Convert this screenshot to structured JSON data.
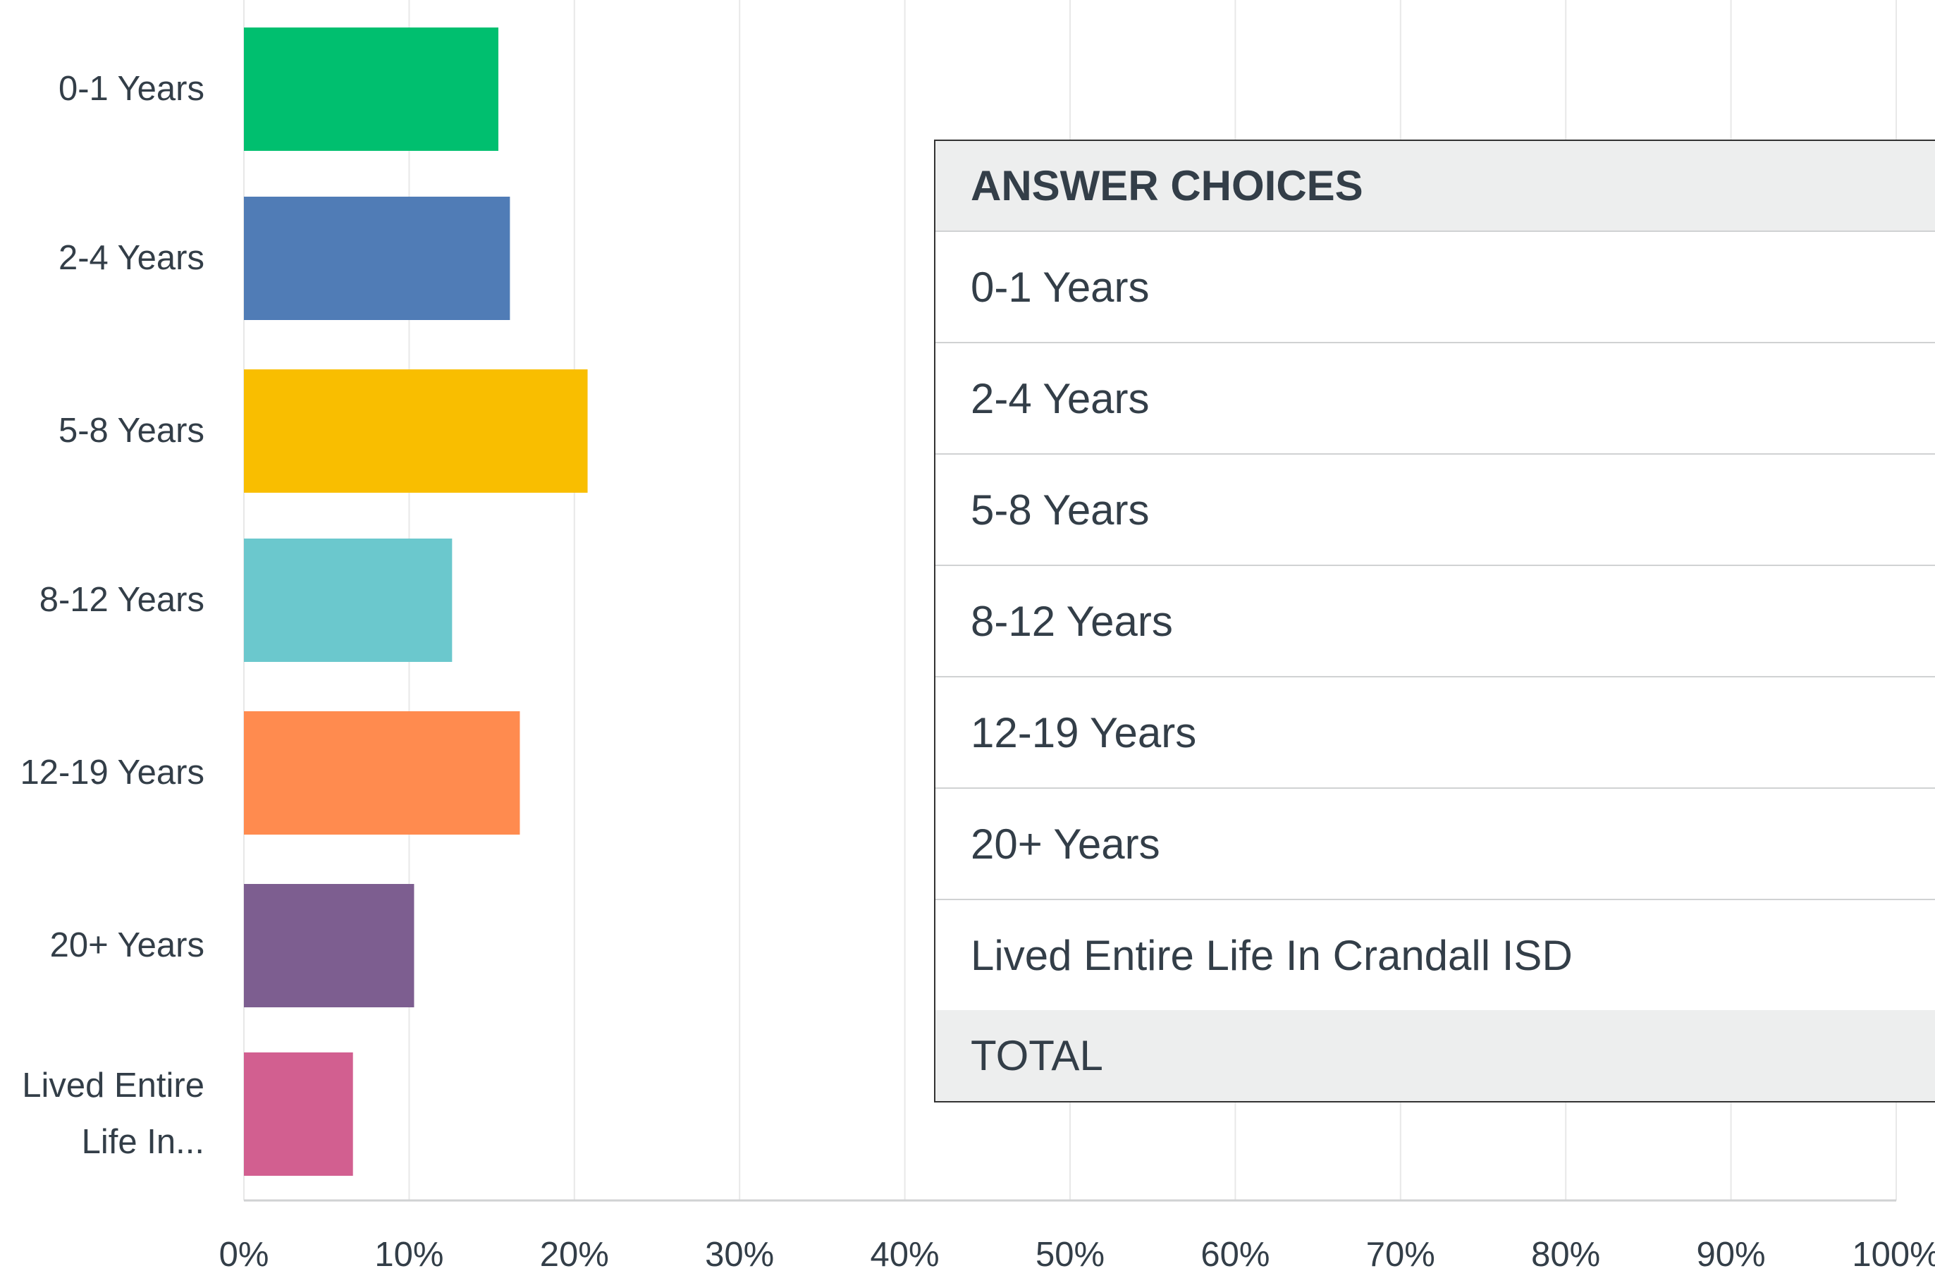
{
  "chart_data": {
    "type": "barh",
    "categories": [
      "0-1 Years",
      "2-4 Years",
      "5-8 Years",
      "8-12 Years",
      "12-19 Years",
      "20+ Years",
      "Lived Entire Life In..."
    ],
    "values": [
      15.4,
      16.1,
      20.8,
      12.6,
      16.7,
      10.3,
      6.6
    ],
    "colors": [
      "#00bf6f",
      "#507cb6",
      "#f9be00",
      "#6bc8cd",
      "#ff8b4f",
      "#7d5e90",
      "#d25f90"
    ],
    "xlim": [
      0,
      100
    ],
    "xticks": [
      {
        "value": 0,
        "label": "0%"
      },
      {
        "value": 10,
        "label": "10%"
      },
      {
        "value": 20,
        "label": "20%"
      },
      {
        "value": 30,
        "label": "30%"
      },
      {
        "value": 40,
        "label": "40%"
      },
      {
        "value": 50,
        "label": "50%"
      },
      {
        "value": 60,
        "label": "60%"
      },
      {
        "value": 70,
        "label": "70%"
      },
      {
        "value": 80,
        "label": "80%"
      },
      {
        "value": 90,
        "label": "90%"
      },
      {
        "value": 100,
        "label": "100%"
      }
    ],
    "grid": true
  },
  "table": {
    "header": "ANSWER CHOICES",
    "rows": [
      "0-1 Years",
      "2-4 Years",
      "5-8 Years",
      "8-12 Years",
      "12-19 Years",
      "20+ Years",
      "Lived Entire Life In Crandall ISD"
    ],
    "total": "TOTAL"
  }
}
